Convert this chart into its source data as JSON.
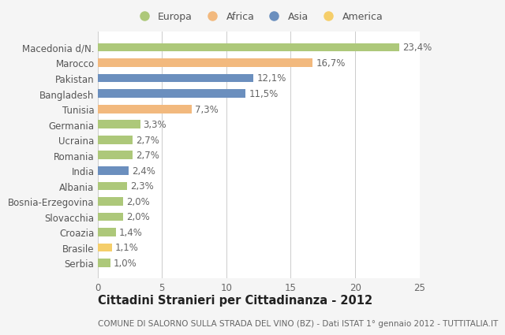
{
  "categories": [
    "Macedonia d/N.",
    "Marocco",
    "Pakistan",
    "Bangladesh",
    "Tunisia",
    "Germania",
    "Ucraina",
    "Romania",
    "India",
    "Albania",
    "Bosnia-Erzegovina",
    "Slovacchia",
    "Croazia",
    "Brasile",
    "Serbia"
  ],
  "values": [
    23.4,
    16.7,
    12.1,
    11.5,
    7.3,
    3.3,
    2.7,
    2.7,
    2.4,
    2.3,
    2.0,
    2.0,
    1.4,
    1.1,
    1.0
  ],
  "labels": [
    "23,4%",
    "16,7%",
    "12,1%",
    "11,5%",
    "7,3%",
    "3,3%",
    "2,7%",
    "2,7%",
    "2,4%",
    "2,3%",
    "2,0%",
    "2,0%",
    "1,4%",
    "1,1%",
    "1,0%"
  ],
  "colors": [
    "#adc87a",
    "#f2b97e",
    "#6b8fbe",
    "#6b8fbe",
    "#f2b97e",
    "#adc87a",
    "#adc87a",
    "#adc87a",
    "#6b8fbe",
    "#adc87a",
    "#adc87a",
    "#adc87a",
    "#adc87a",
    "#f5ce6a",
    "#adc87a"
  ],
  "legend_labels": [
    "Europa",
    "Africa",
    "Asia",
    "America"
  ],
  "legend_colors": [
    "#adc87a",
    "#f2b97e",
    "#6b8fbe",
    "#f5ce6a"
  ],
  "title": "Cittadini Stranieri per Cittadinanza - 2012",
  "subtitle": "COMUNE DI SALORNO SULLA STRADA DEL VINO (BZ) - Dati ISTAT 1° gennaio 2012 - TUTTITALIA.IT",
  "xlim": [
    0,
    25
  ],
  "xticks": [
    0,
    5,
    10,
    15,
    20,
    25
  ],
  "bg_color": "#f5f5f5",
  "bar_area_color": "#ffffff",
  "grid_color": "#cccccc",
  "label_fontsize": 8.5,
  "tick_fontsize": 8.5,
  "title_fontsize": 10.5,
  "subtitle_fontsize": 7.5,
  "bar_height": 0.55
}
